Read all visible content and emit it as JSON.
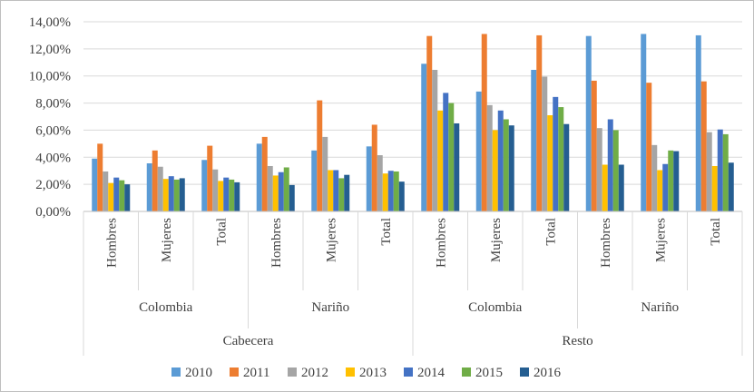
{
  "chart_data": {
    "type": "bar",
    "ylim": [
      0,
      14
    ],
    "y_ticks": [
      "0,00%",
      "2,00%",
      "4,00%",
      "6,00%",
      "8,00%",
      "10,00%",
      "12,00%",
      "14,00%"
    ],
    "y_tick_values": [
      0,
      2,
      4,
      6,
      8,
      10,
      12,
      14
    ],
    "value_unit": "%",
    "grid": true,
    "legend_position": "bottom",
    "categories": [
      "Hombres",
      "Mujeres",
      "Total",
      "Hombres",
      "Mujeres",
      "Total",
      "Hombres",
      "Mujeres",
      "Total",
      "Hombres",
      "Mujeres",
      "Total"
    ],
    "regions": [
      {
        "label": "Colombia",
        "span": [
          0,
          2
        ]
      },
      {
        "label": "Nariño",
        "span": [
          3,
          5
        ]
      },
      {
        "label": "Colombia",
        "span": [
          6,
          8
        ]
      },
      {
        "label": "Nariño",
        "span": [
          9,
          11
        ]
      }
    ],
    "zones": [
      {
        "label": "Cabecera",
        "span": [
          0,
          5
        ]
      },
      {
        "label": "Resto",
        "span": [
          6,
          11
        ]
      }
    ],
    "series": [
      {
        "name": "2010",
        "color": "#5B9BD5",
        "values": [
          3.9,
          3.55,
          3.8,
          5.0,
          4.5,
          4.8,
          10.9,
          8.85,
          10.45,
          12.95,
          13.1,
          13.0
        ]
      },
      {
        "name": "2011",
        "color": "#ED7D31",
        "values": [
          5.0,
          4.5,
          4.85,
          5.5,
          8.2,
          6.4,
          12.95,
          13.1,
          13.0,
          9.65,
          9.5,
          9.6
        ]
      },
      {
        "name": "2012",
        "color": "#A5A5A5",
        "values": [
          2.95,
          3.3,
          3.1,
          3.35,
          5.5,
          4.15,
          10.45,
          7.85,
          9.95,
          6.15,
          4.9,
          5.85
        ]
      },
      {
        "name": "2013",
        "color": "#FFC000",
        "values": [
          2.1,
          2.4,
          2.25,
          2.65,
          3.05,
          2.8,
          7.45,
          6.0,
          7.1,
          3.45,
          3.05,
          3.35
        ]
      },
      {
        "name": "2014",
        "color": "#4472C4",
        "values": [
          2.5,
          2.6,
          2.5,
          2.9,
          3.05,
          3.0,
          8.75,
          7.45,
          8.45,
          6.8,
          3.5,
          6.05
        ]
      },
      {
        "name": "2015",
        "color": "#70AD47",
        "values": [
          2.3,
          2.35,
          2.35,
          3.25,
          2.45,
          2.95,
          8.0,
          6.8,
          7.7,
          6.0,
          4.5,
          5.7
        ]
      },
      {
        "name": "2016",
        "color": "#255E91",
        "values": [
          2.0,
          2.45,
          2.15,
          1.95,
          2.7,
          2.2,
          6.5,
          6.35,
          6.45,
          3.45,
          4.45,
          3.6
        ]
      }
    ]
  }
}
